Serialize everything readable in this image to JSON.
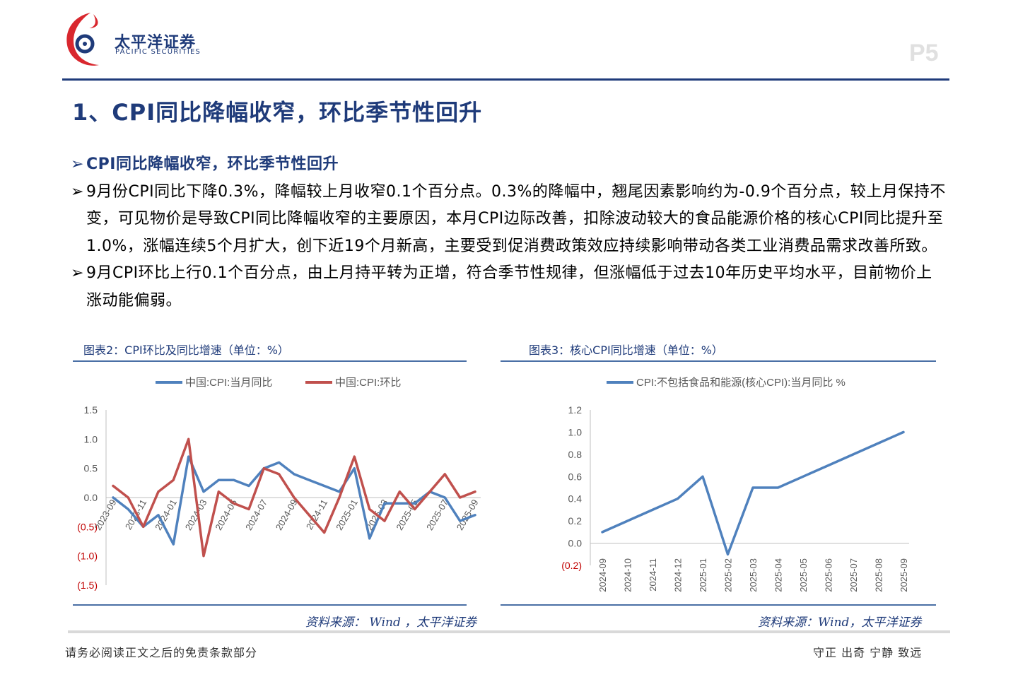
{
  "header": {
    "brand_cn": "太平洋证券",
    "brand_en": "PACIFIC SECURITIES",
    "page_number": "P5"
  },
  "section_title": "1、CPI同比降幅收窄，环比季节性回升",
  "bullets": [
    {
      "text": "CPI同比降幅收窄，环比季节性回升",
      "style": "blue"
    },
    {
      "text": "9月份CPI同比下降0.3%，降幅较上月收窄0.1个百分点。0.3%的降幅中，翘尾因素影响约为-0.9个百分点，较上月保持不变，可见物价是导致CPI同比降幅收窄的主要原因，本月CPI边际改善，扣除波动较大的食品能源价格的核心CPI同比提升至1.0%，涨幅连续5个月扩大，创下近19个月新高，主要受到促消费政策效应持续影响带动各类工业消费品需求改善所致。",
      "style": "normal"
    },
    {
      "text": "9月CPI环比上行0.1个百分点，由上月持平转为正增，符合季节性规律，但涨幅低于过去10年历史平均水平，目前物价上涨动能偏弱。",
      "style": "normal"
    }
  ],
  "captions": {
    "left": "图表2：CPI环比及同比增速（单位：%）",
    "right": "图表3：核心CPI同比增速（单位：%）"
  },
  "sources": {
    "left": "资料来源： Wind ，太平洋证券",
    "right": "资料来源：Wind，太平洋证券"
  },
  "footer": {
    "left": "请务必阅读正文之后的免责条款部分",
    "right": "守正 出奇 宁静 致远"
  },
  "colors": {
    "brand_blue": "#1f3b7a",
    "series_blue": "#4f81bd",
    "series_red": "#c0504d",
    "negative_label": "#c00000"
  },
  "chart_data": [
    {
      "type": "line",
      "x": [
        "2023-09",
        "2023-10",
        "2023-11",
        "2023-12",
        "2024-01",
        "2024-02",
        "2024-03",
        "2024-04",
        "2024-05",
        "2024-06",
        "2024-07",
        "2024-08",
        "2024-09",
        "2024-10",
        "2024-11",
        "2024-12",
        "2025-01",
        "2025-02",
        "2025-03",
        "2025-04",
        "2025-05",
        "2025-06",
        "2025-07",
        "2025-08",
        "2025-09"
      ],
      "tick_labels": [
        "2023-09",
        "2023-11",
        "2024-01",
        "2024-03",
        "2024-05",
        "2024-07",
        "2024-09",
        "2024-11",
        "2025-01",
        "2025-03",
        "2025-05",
        "2025-07",
        "2025-09"
      ],
      "series": [
        {
          "name": "中国:CPI:当月同比",
          "color": "#4f81bd",
          "values": [
            0.0,
            -0.2,
            -0.5,
            -0.3,
            -0.8,
            0.7,
            0.1,
            0.3,
            0.3,
            0.2,
            0.5,
            0.6,
            0.4,
            0.3,
            0.2,
            0.1,
            0.5,
            -0.7,
            -0.1,
            -0.1,
            -0.1,
            0.1,
            0.0,
            -0.4,
            -0.3
          ]
        },
        {
          "name": "中国:CPI:环比",
          "color": "#c0504d",
          "values": [
            0.2,
            0.0,
            -0.5,
            0.1,
            0.3,
            1.0,
            -1.0,
            0.1,
            -0.1,
            -0.2,
            0.5,
            0.4,
            0.0,
            -0.3,
            -0.6,
            0.0,
            0.7,
            -0.2,
            -0.4,
            0.1,
            -0.2,
            0.1,
            0.4,
            0.0,
            0.1
          ]
        }
      ],
      "y_ticks": [
        "1.5",
        "1.0",
        "0.5",
        "0.0",
        "(0.5)",
        "(1.0)",
        "(1.5)"
      ],
      "ylim": [
        -1.5,
        1.5
      ],
      "legend": "top",
      "grid": false
    },
    {
      "type": "line",
      "x": [
        "2024-09",
        "2024-10",
        "2024-11",
        "2024-12",
        "2025-01",
        "2025-02",
        "2025-03",
        "2025-04",
        "2025-05",
        "2025-06",
        "2025-07",
        "2025-08",
        "2025-09"
      ],
      "series": [
        {
          "name": "CPI:不包括食品和能源(核心CPI):当月同比 %",
          "color": "#4f81bd",
          "values": [
            0.1,
            0.2,
            0.3,
            0.4,
            0.6,
            -0.1,
            0.5,
            0.5,
            0.6,
            0.7,
            0.8,
            0.9,
            1.0
          ]
        }
      ],
      "y_ticks": [
        "1.2",
        "1.0",
        "0.8",
        "0.6",
        "0.4",
        "0.2",
        "0.0",
        "(0.2)"
      ],
      "ylim": [
        -0.2,
        1.2
      ],
      "legend": "top",
      "grid": false
    }
  ]
}
